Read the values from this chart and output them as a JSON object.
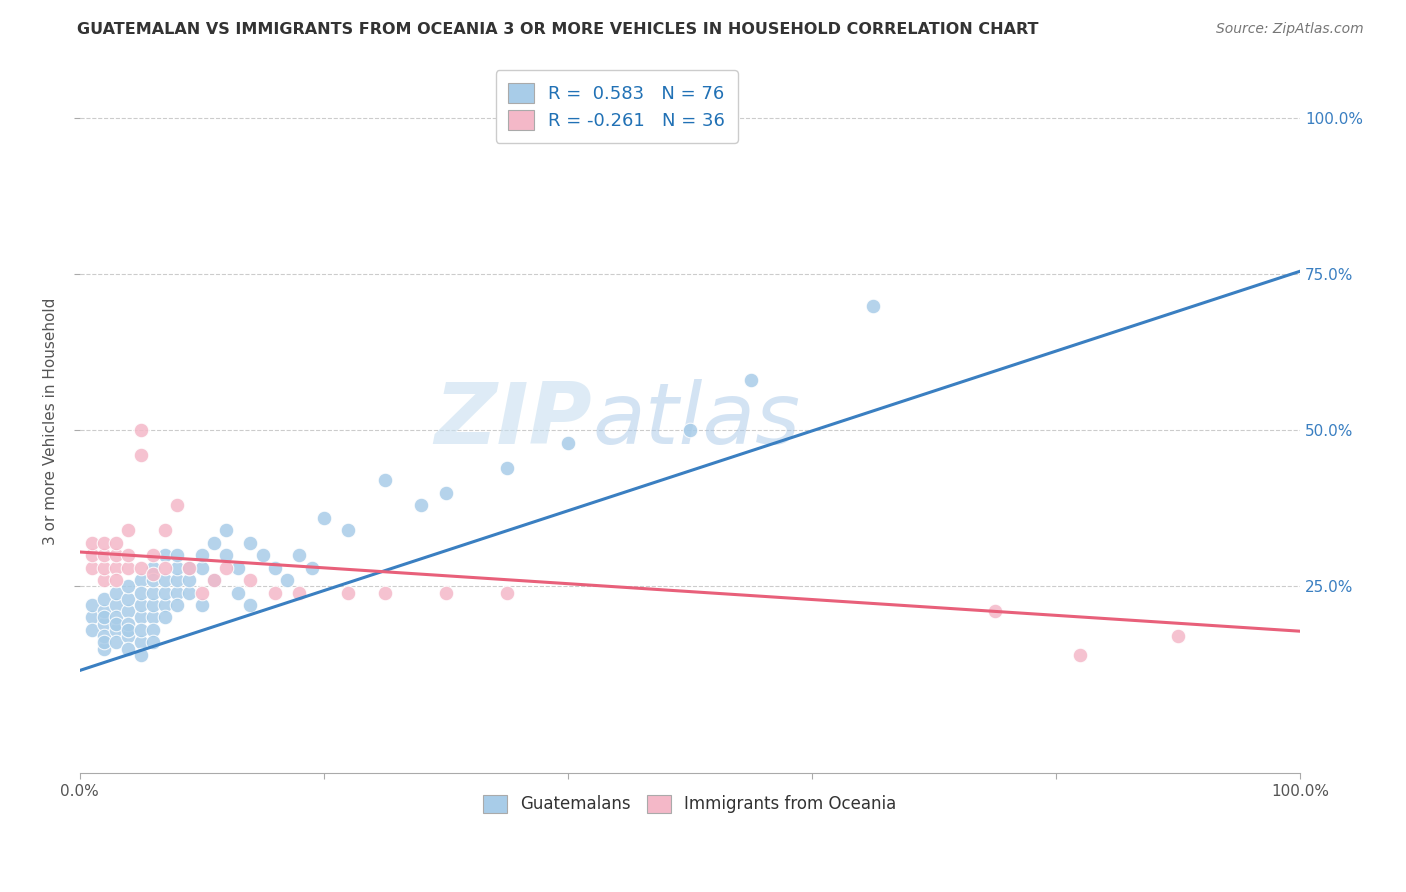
{
  "title": "GUATEMALAN VS IMMIGRANTS FROM OCEANIA 3 OR MORE VEHICLES IN HOUSEHOLD CORRELATION CHART",
  "source": "Source: ZipAtlas.com",
  "ylabel": "3 or more Vehicles in Household",
  "yticks": [
    "25.0%",
    "50.0%",
    "75.0%",
    "100.0%"
  ],
  "ytick_vals": [
    0.25,
    0.5,
    0.75,
    1.0
  ],
  "legend_blue_r": "R =  0.583",
  "legend_blue_n": "N = 76",
  "legend_pink_r": "R = -0.261",
  "legend_pink_n": "N = 36",
  "legend_label_blue": "Guatemalans",
  "legend_label_pink": "Immigrants from Oceania",
  "blue_color": "#a8cce8",
  "pink_color": "#f4b8c8",
  "trendline_blue": "#3a7fc1",
  "trendline_pink": "#e8607a",
  "watermark_zip": "ZIP",
  "watermark_atlas": "atlas",
  "blue_scatter_x": [
    0.01,
    0.01,
    0.01,
    0.02,
    0.02,
    0.02,
    0.02,
    0.02,
    0.02,
    0.02,
    0.03,
    0.03,
    0.03,
    0.03,
    0.03,
    0.03,
    0.04,
    0.04,
    0.04,
    0.04,
    0.04,
    0.04,
    0.04,
    0.05,
    0.05,
    0.05,
    0.05,
    0.05,
    0.05,
    0.05,
    0.06,
    0.06,
    0.06,
    0.06,
    0.06,
    0.06,
    0.06,
    0.07,
    0.07,
    0.07,
    0.07,
    0.07,
    0.08,
    0.08,
    0.08,
    0.08,
    0.08,
    0.09,
    0.09,
    0.09,
    0.1,
    0.1,
    0.1,
    0.11,
    0.11,
    0.12,
    0.12,
    0.13,
    0.13,
    0.14,
    0.14,
    0.15,
    0.16,
    0.17,
    0.18,
    0.19,
    0.2,
    0.22,
    0.25,
    0.28,
    0.3,
    0.35,
    0.4,
    0.5,
    0.55,
    0.65
  ],
  "blue_scatter_y": [
    0.2,
    0.18,
    0.22,
    0.15,
    0.19,
    0.21,
    0.17,
    0.23,
    0.16,
    0.2,
    0.18,
    0.22,
    0.2,
    0.16,
    0.24,
    0.19,
    0.17,
    0.21,
    0.19,
    0.15,
    0.23,
    0.25,
    0.18,
    0.16,
    0.2,
    0.22,
    0.18,
    0.14,
    0.26,
    0.24,
    0.2,
    0.22,
    0.18,
    0.24,
    0.16,
    0.28,
    0.26,
    0.22,
    0.24,
    0.2,
    0.26,
    0.3,
    0.24,
    0.22,
    0.26,
    0.28,
    0.3,
    0.24,
    0.26,
    0.28,
    0.28,
    0.3,
    0.22,
    0.32,
    0.26,
    0.3,
    0.34,
    0.28,
    0.24,
    0.32,
    0.22,
    0.3,
    0.28,
    0.26,
    0.3,
    0.28,
    0.36,
    0.34,
    0.42,
    0.38,
    0.4,
    0.44,
    0.48,
    0.5,
    0.58,
    0.7
  ],
  "pink_scatter_x": [
    0.01,
    0.01,
    0.01,
    0.02,
    0.02,
    0.02,
    0.02,
    0.03,
    0.03,
    0.03,
    0.03,
    0.04,
    0.04,
    0.04,
    0.05,
    0.05,
    0.05,
    0.06,
    0.06,
    0.07,
    0.07,
    0.08,
    0.09,
    0.1,
    0.11,
    0.12,
    0.14,
    0.16,
    0.18,
    0.22,
    0.25,
    0.3,
    0.35,
    0.75,
    0.82,
    0.9
  ],
  "pink_scatter_y": [
    0.28,
    0.3,
    0.32,
    0.26,
    0.28,
    0.3,
    0.32,
    0.28,
    0.3,
    0.26,
    0.32,
    0.34,
    0.28,
    0.3,
    0.5,
    0.46,
    0.28,
    0.27,
    0.3,
    0.34,
    0.28,
    0.38,
    0.28,
    0.24,
    0.26,
    0.28,
    0.26,
    0.24,
    0.24,
    0.24,
    0.24,
    0.24,
    0.24,
    0.21,
    0.14,
    0.17
  ],
  "blue_trend_y_start": 0.115,
  "blue_trend_y_end": 0.755,
  "pink_trend_y_start": 0.305,
  "pink_trend_y_end": 0.178,
  "xlim": [
    0.0,
    1.0
  ],
  "ylim": [
    -0.05,
    1.08
  ],
  "top_gridline_y": 1.0
}
